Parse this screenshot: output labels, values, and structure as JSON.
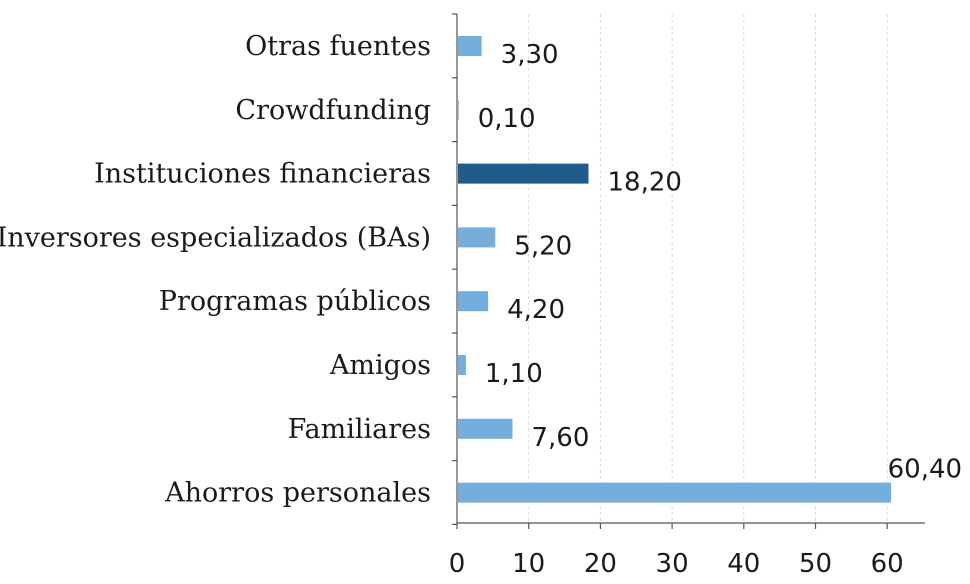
{
  "chart_data": {
    "type": "bar",
    "orientation": "horizontal",
    "categories": [
      "Otras fuentes",
      "Crowdfunding",
      "Instituciones financieras",
      "Inversores especializados (BAs)",
      "Programas públicos",
      "Amigos",
      "Familiares",
      "Ahorros personales"
    ],
    "values": [
      3.3,
      0.1,
      18.2,
      5.2,
      4.2,
      1.1,
      7.6,
      60.4
    ],
    "value_labels": [
      "3,30",
      "0,10",
      "18,20",
      "5,20",
      "4,20",
      "1,10",
      "7,60",
      "60,40"
    ],
    "highlight_index": 2,
    "xlim": [
      0,
      65
    ],
    "xticks": [
      0,
      10,
      20,
      30,
      40,
      50,
      60
    ],
    "xtick_labels": [
      "0",
      "10",
      "20",
      "30",
      "40",
      "50",
      "60"
    ],
    "grid": "vertical-dashed",
    "legend": "none",
    "colors": {
      "bar": "#74aedd",
      "highlight": "#1f5c8b"
    }
  }
}
